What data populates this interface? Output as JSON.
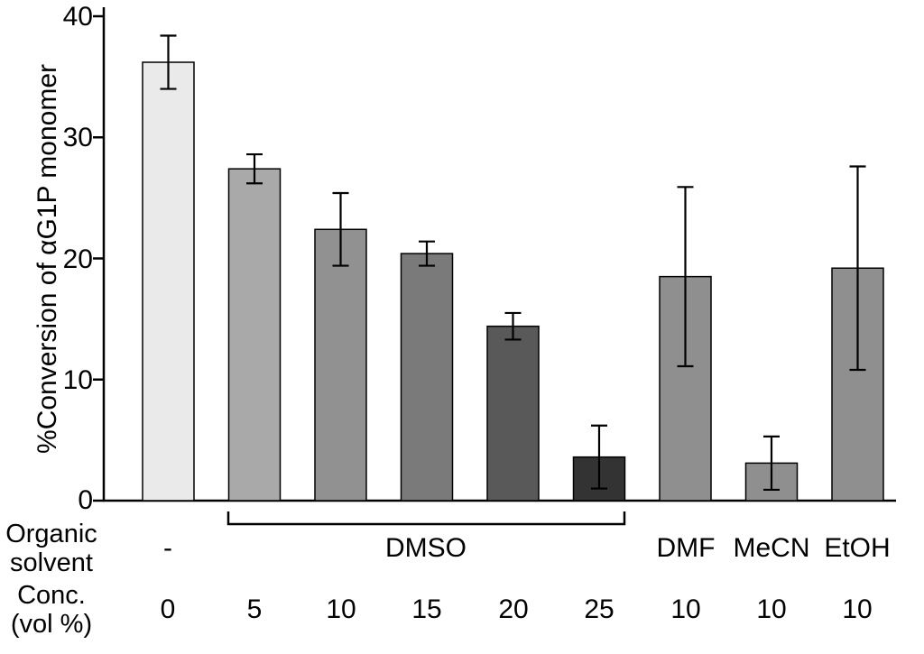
{
  "chart_data": {
    "type": "bar",
    "title": "",
    "xlabel": "",
    "ylabel": "%Conversion of αG1P monomer",
    "ylim": [
      0,
      40
    ],
    "yticks": [
      "0",
      "10",
      "20",
      "30",
      "40"
    ],
    "grid": false,
    "legend": "none",
    "bars": [
      {
        "solvent": "-",
        "conc": "0",
        "value": 36.2,
        "error": 2.2,
        "color": "#eaeaea"
      },
      {
        "solvent": "DMSO",
        "conc": "5",
        "value": 27.4,
        "error": 1.2,
        "color": "#a9a9a9"
      },
      {
        "solvent": "DMSO",
        "conc": "10",
        "value": 22.4,
        "error": 3.0,
        "color": "#919191"
      },
      {
        "solvent": "DMSO",
        "conc": "15",
        "value": 20.4,
        "error": 1.0,
        "color": "#7a7a7a"
      },
      {
        "solvent": "DMSO",
        "conc": "20",
        "value": 14.4,
        "error": 1.1,
        "color": "#595959"
      },
      {
        "solvent": "DMSO",
        "conc": "25",
        "value": 3.6,
        "error": 2.6,
        "color": "#333333"
      },
      {
        "solvent": "DMF",
        "conc": "10",
        "value": 18.5,
        "error": 7.4,
        "color": "#8f8f8f"
      },
      {
        "solvent": "MeCN",
        "conc": "10",
        "value": 3.1,
        "error": 2.2,
        "color": "#8f8f8f"
      },
      {
        "solvent": "EtOH",
        "conc": "10",
        "value": 19.2,
        "error": 8.4,
        "color": "#8f8f8f"
      }
    ],
    "group_bracket": {
      "label": "DMSO",
      "from_bar": 1,
      "to_bar": 5
    },
    "bottom_rows": {
      "solvent_label_line1": "Organic",
      "solvent_label_line2": "solvent",
      "conc_label_line1": "Conc.",
      "conc_label_line2": "(vol %)",
      "solvent_first": "-",
      "solvent_singles": [
        "DMF",
        "MeCN",
        "EtOH"
      ],
      "conc_values": [
        "0",
        "5",
        "10",
        "15",
        "20",
        "25",
        "10",
        "10",
        "10"
      ]
    },
    "axis_color": "#000000"
  }
}
